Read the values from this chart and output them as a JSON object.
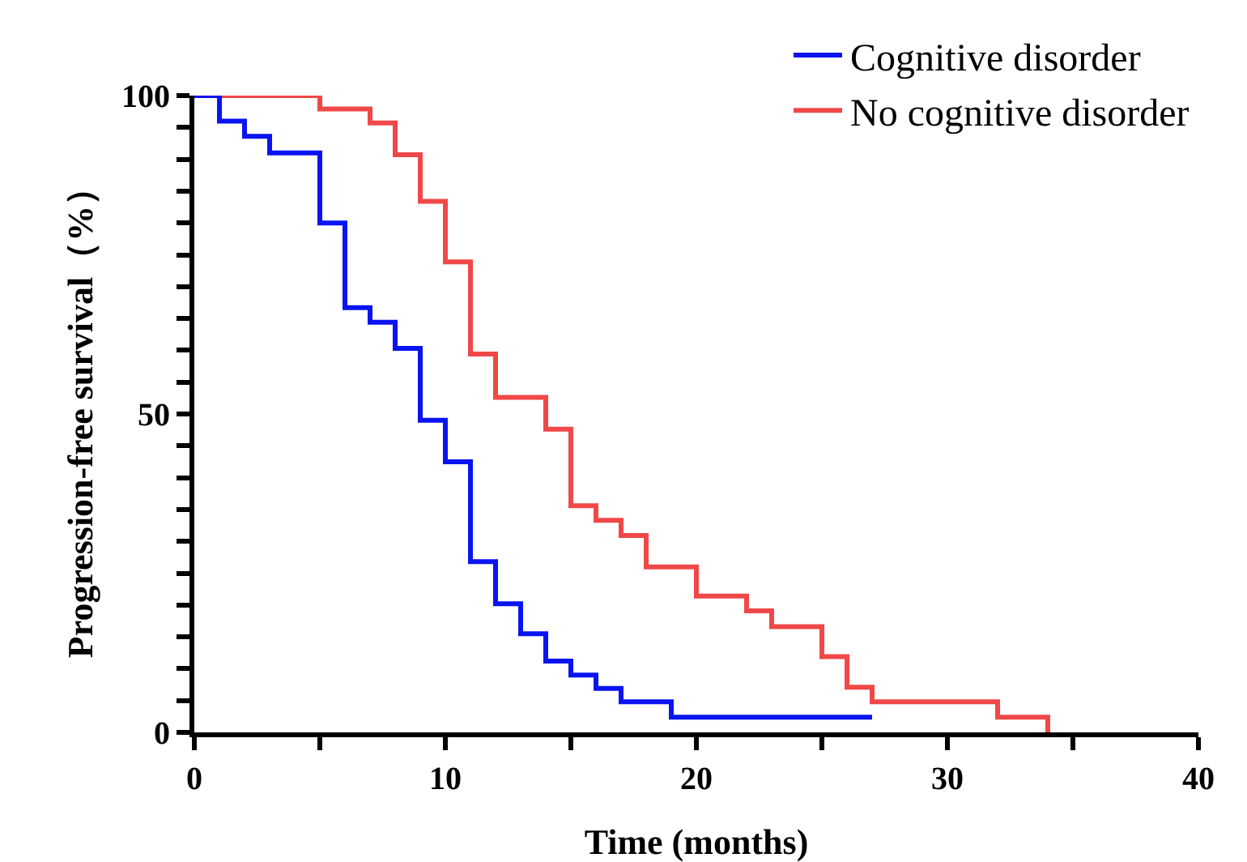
{
  "chart_data": {
    "type": "step",
    "xlabel": "Time (months)",
    "ylabel": "Progression-free survival（%）",
    "xlim": [
      0,
      40
    ],
    "ylim": [
      0,
      100
    ],
    "xticks": [
      0,
      {
        "value": 5,
        "label": null
      },
      10,
      {
        "value": 15,
        "label": null
      },
      20,
      {
        "value": 25,
        "label": null
      },
      30,
      {
        "value": 35,
        "label": null
      },
      40
    ],
    "yticks": [
      0,
      {
        "value": 5,
        "label": null
      },
      {
        "value": 10,
        "label": null
      },
      {
        "value": 15,
        "label": null
      },
      {
        "value": 20,
        "label": null
      },
      {
        "value": 25,
        "label": null
      },
      {
        "value": 30,
        "label": null
      },
      {
        "value": 35,
        "label": null
      },
      {
        "value": 40,
        "label": null
      },
      {
        "value": 45,
        "label": null
      },
      50,
      {
        "value": 55,
        "label": null
      },
      {
        "value": 60,
        "label": null
      },
      {
        "value": 65,
        "label": null
      },
      {
        "value": 70,
        "label": null
      },
      {
        "value": 75,
        "label": null
      },
      {
        "value": 80,
        "label": null
      },
      {
        "value": 85,
        "label": null
      },
      {
        "value": 90,
        "label": null
      },
      {
        "value": 95,
        "label": null
      },
      100
    ],
    "grid": false,
    "legend": "top right",
    "marker": "none",
    "line_style": "solid",
    "series": [
      {
        "name": "Cognitive disorder",
        "color": "#0a14f0",
        "x": [
          0,
          1,
          2,
          3,
          5,
          6,
          7,
          8,
          9,
          10,
          11,
          12,
          13,
          14,
          15,
          16,
          17,
          19,
          27
        ],
        "values": [
          100,
          96,
          93.6,
          91,
          80,
          66.7,
          64.4,
          60.3,
          49,
          42.5,
          26.8,
          20.2,
          15.5,
          11.2,
          9,
          6.9,
          4.8,
          2.4,
          2.4
        ]
      },
      {
        "name": "No cognitive disorder",
        "color": "#f04848",
        "x": [
          0,
          5,
          7,
          8,
          9,
          10,
          11,
          12,
          14,
          15,
          16,
          17,
          18,
          20,
          22,
          23,
          25,
          26,
          27,
          32,
          34,
          34
        ],
        "values": [
          100,
          97.9,
          95.7,
          90.7,
          83.4,
          73.9,
          59.4,
          52.6,
          47.6,
          35.6,
          33.3,
          30.9,
          26,
          21.4,
          19.1,
          16.6,
          11.9,
          7.1,
          4.8,
          2.4,
          2.4,
          0
        ]
      }
    ]
  }
}
